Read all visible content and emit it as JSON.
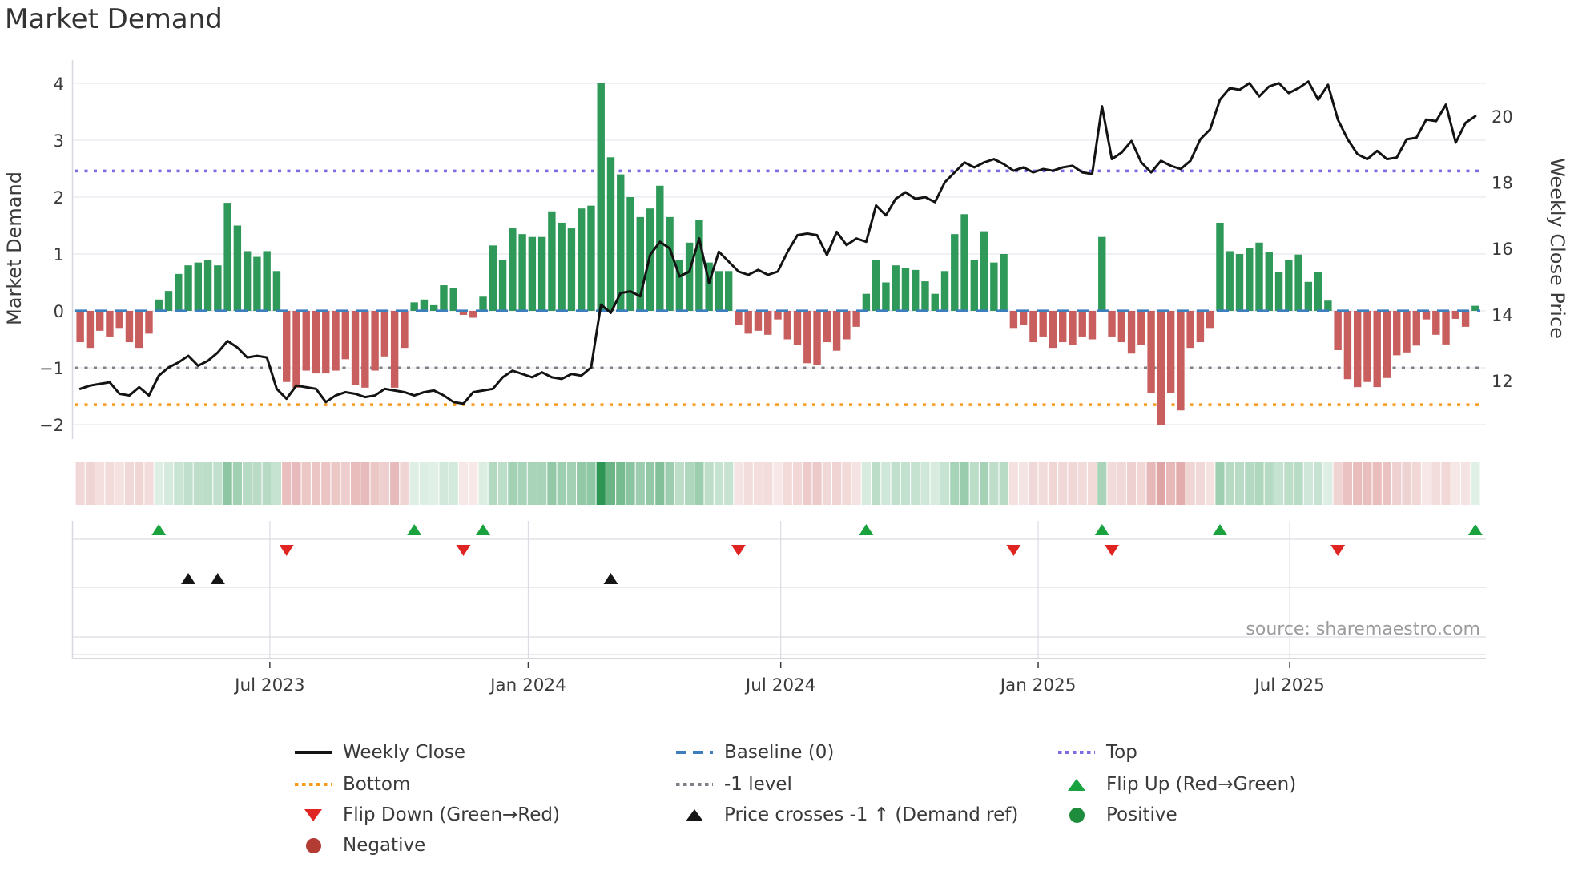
{
  "title": "Market Demand",
  "source_note": "source: sharemaestro.com",
  "colors": {
    "bar_positive": "#2e9958",
    "bar_negative": "#c85f5e",
    "price_line": "#131313",
    "baseline": "#3d7ebd",
    "top_line": "#7a6ce6",
    "bottom_line": "#f6991c",
    "minus1_line": "#808089",
    "flip_up_marker": "#1aa23e",
    "flip_down_marker": "#e02421",
    "price_cross_marker": "#151515",
    "grid": "#ebebf2",
    "spine": "#d8d8e0",
    "tick_text": "#3b3b3b",
    "source_text": "#9b9b9b",
    "heat_green": "46,150,85",
    "heat_red": "198,94,92"
  },
  "chart_data": {
    "type": "combo",
    "x_unit": "weekly (Feb 2023 - Nov 2025)",
    "n_weeks": 143,
    "title": "Market Demand",
    "x_ticks": [
      {
        "pos": 19.3,
        "label": "Jul 2023"
      },
      {
        "pos": 45.6,
        "label": "Jan 2024"
      },
      {
        "pos": 71.3,
        "label": "Jul 2024"
      },
      {
        "pos": 97.5,
        "label": "Jan 2025"
      },
      {
        "pos": 123.1,
        "label": "Jul 2025"
      }
    ],
    "left_axis": {
      "label": "Market Demand",
      "ticks": [
        4,
        3,
        2,
        1,
        0,
        -1,
        -2
      ],
      "range": [
        -2.25,
        4.4
      ],
      "grid": true
    },
    "right_axis": {
      "label": "Weekly Close Price",
      "ticks": [
        20,
        18,
        16,
        14,
        12
      ],
      "range": [
        10.2,
        21.7
      ],
      "grid": false
    },
    "series": [
      {
        "name": "Market Demand",
        "type": "bar",
        "axis": "left",
        "values": [
          -0.55,
          -0.65,
          -0.35,
          -0.45,
          -0.3,
          -0.55,
          -0.65,
          -0.4,
          0.2,
          0.35,
          0.65,
          0.8,
          0.85,
          0.9,
          0.8,
          1.9,
          1.5,
          1.05,
          0.95,
          1.05,
          0.7,
          -1.25,
          -1.35,
          -1.05,
          -1.1,
          -1.1,
          -1.05,
          -0.85,
          -1.3,
          -1.35,
          -1.05,
          -0.8,
          -1.35,
          -0.65,
          0.15,
          0.2,
          0.1,
          0.45,
          0.4,
          -0.07,
          -0.12,
          0.25,
          1.15,
          0.9,
          1.45,
          1.35,
          1.3,
          1.3,
          1.75,
          1.55,
          1.45,
          1.8,
          1.85,
          4.0,
          2.7,
          2.4,
          2.0,
          1.65,
          1.8,
          2.2,
          1.65,
          0.9,
          1.2,
          1.6,
          0.85,
          0.7,
          0.7,
          -0.25,
          -0.4,
          -0.35,
          -0.42,
          -0.15,
          -0.5,
          -0.6,
          -0.92,
          -0.95,
          -0.55,
          -0.7,
          -0.5,
          -0.28,
          0.3,
          0.9,
          0.5,
          0.8,
          0.75,
          0.72,
          0.52,
          0.3,
          0.7,
          1.35,
          1.7,
          0.9,
          1.4,
          0.85,
          1.0,
          -0.3,
          -0.25,
          -0.55,
          -0.45,
          -0.65,
          -0.55,
          -0.6,
          -0.45,
          -0.5,
          1.3,
          -0.45,
          -0.55,
          -0.75,
          -0.6,
          -1.45,
          -2.0,
          -1.45,
          -1.75,
          -0.65,
          -0.55,
          -0.3,
          1.55,
          1.05,
          1.0,
          1.1,
          1.2,
          1.03,
          0.68,
          0.89,
          0.99,
          0.51,
          0.68,
          0.18,
          -0.69,
          -1.2,
          -1.34,
          -1.25,
          -1.34,
          -1.18,
          -0.78,
          -0.73,
          -0.61,
          -0.15,
          -0.42,
          -0.59,
          -0.14,
          -0.28,
          0.09
        ]
      },
      {
        "name": "Weekly Close",
        "type": "line",
        "axis": "right",
        "values": [
          11.75,
          11.85,
          11.9,
          11.95,
          11.6,
          11.55,
          11.8,
          11.55,
          12.15,
          12.4,
          12.55,
          12.75,
          12.45,
          12.6,
          12.85,
          13.2,
          13.0,
          12.7,
          12.75,
          12.7,
          11.75,
          11.45,
          11.85,
          11.8,
          11.75,
          11.35,
          11.55,
          11.65,
          11.6,
          11.5,
          11.55,
          11.75,
          11.7,
          11.65,
          11.55,
          11.65,
          11.7,
          11.55,
          11.35,
          11.3,
          11.65,
          11.7,
          11.75,
          12.1,
          12.3,
          12.2,
          12.1,
          12.25,
          12.1,
          12.05,
          12.2,
          12.15,
          12.4,
          14.3,
          14.05,
          14.65,
          14.7,
          14.55,
          15.8,
          16.2,
          16.0,
          15.15,
          15.3,
          16.3,
          14.95,
          15.9,
          15.6,
          15.3,
          15.2,
          15.35,
          15.2,
          15.3,
          15.9,
          16.4,
          16.45,
          16.4,
          15.8,
          16.5,
          16.1,
          16.3,
          16.2,
          17.3,
          17.0,
          17.5,
          17.7,
          17.5,
          17.55,
          17.4,
          18.0,
          18.3,
          18.6,
          18.45,
          18.6,
          18.7,
          18.55,
          18.35,
          18.45,
          18.3,
          18.4,
          18.35,
          18.45,
          18.5,
          18.3,
          18.25,
          20.3,
          18.7,
          18.9,
          19.25,
          18.6,
          18.3,
          18.65,
          18.5,
          18.4,
          18.65,
          19.3,
          19.6,
          20.5,
          20.85,
          20.8,
          21.0,
          20.6,
          20.9,
          21.0,
          20.7,
          20.85,
          21.05,
          20.5,
          20.95,
          19.9,
          19.3,
          18.85,
          18.7,
          18.95,
          18.7,
          18.75,
          19.3,
          19.35,
          19.9,
          19.85,
          20.35,
          19.2,
          19.8,
          20.0
        ]
      }
    ],
    "ref_lines": [
      {
        "name": "Baseline (0)",
        "value": 0,
        "style": "dashed",
        "color": "#3d7ebd"
      },
      {
        "name": "Top",
        "value": 2.46,
        "style": "dotted",
        "color": "#7a6ce6"
      },
      {
        "name": "Bottom",
        "value": -1.65,
        "style": "dotted",
        "color": "#f6991c"
      },
      {
        "name": "-1 level",
        "value": -1,
        "style": "dotted",
        "color": "#808089"
      }
    ],
    "events": {
      "flip_up_weeks": [
        8,
        34,
        41,
        80,
        104,
        116,
        142
      ],
      "flip_down_weeks": [
        21,
        39,
        67,
        95,
        105,
        128
      ],
      "price_cross_up_weeks": [
        11,
        14,
        54
      ]
    },
    "heatmap_strip": {
      "derived_from": "Market Demand weekly values",
      "green": "positive demand",
      "red": "negative demand",
      "opacity": "proportional to magnitude"
    },
    "legend_position": "bottom, 3 columns"
  },
  "legend": {
    "items": [
      {
        "label": "Weekly Close"
      },
      {
        "label": "Bottom"
      },
      {
        "label": "Flip Down (Green→Red)"
      },
      {
        "label": "Negative"
      },
      {
        "label": "Baseline (0)"
      },
      {
        "label": "-1 level"
      },
      {
        "label": "Price crosses -1 ↑ (Demand ref)"
      },
      {
        "label": "Top"
      },
      {
        "label": "Flip Up (Red→Green)"
      },
      {
        "label": "Positive"
      }
    ]
  }
}
